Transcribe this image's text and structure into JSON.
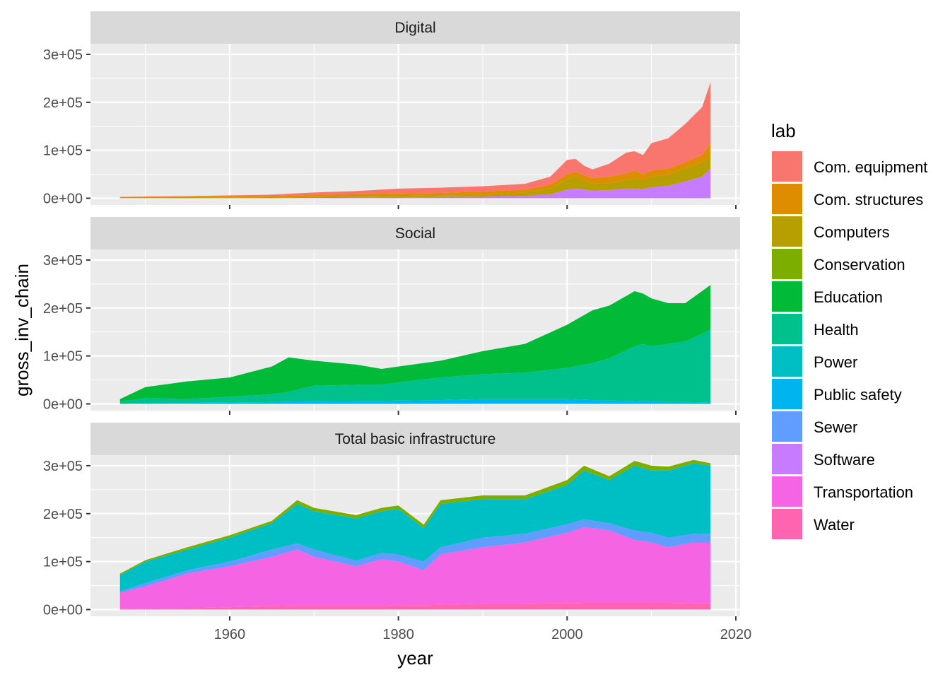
{
  "chart_data": {
    "type": "area",
    "stacked": true,
    "facets": [
      "Digital",
      "Social",
      "Total basic infrastructure"
    ],
    "xlabel": "year",
    "ylabel": "gross_inv_chain",
    "xlim": [
      1943.5,
      2020.5
    ],
    "ylim": [
      -14000,
      322000
    ],
    "x_ticks": [
      1960,
      1980,
      2000,
      2020
    ],
    "y_ticks": [
      0,
      100000,
      200000,
      300000
    ],
    "y_tick_labels": [
      "0e+00",
      "1e+05",
      "2e+05",
      "3e+05"
    ],
    "legend_title": "lab",
    "legend_position": "right",
    "legend": [
      {
        "label": "Com. equipment",
        "color": "#F8766D"
      },
      {
        "label": "Com. structures",
        "color": "#DE8C00"
      },
      {
        "label": "Computers",
        "color": "#B79F00"
      },
      {
        "label": "Conservation",
        "color": "#7CAE00"
      },
      {
        "label": "Education",
        "color": "#00BA38"
      },
      {
        "label": "Health",
        "color": "#00C08B"
      },
      {
        "label": "Power",
        "color": "#00BFC4"
      },
      {
        "label": "Public safety",
        "color": "#00B4F0"
      },
      {
        "label": "Sewer",
        "color": "#619CFF"
      },
      {
        "label": "Software",
        "color": "#C77CFF"
      },
      {
        "label": "Transportation",
        "color": "#F564E3"
      },
      {
        "label": "Water",
        "color": "#FF64B0"
      }
    ],
    "panels": [
      {
        "facet": "Digital",
        "series_order_bottom_to_top": [
          "Software",
          "Computers",
          "Com. structures",
          "Com. equipment"
        ],
        "cumulative_tops": {
          "x": [
            1947,
            1955,
            1965,
            1970,
            1975,
            1980,
            1985,
            1990,
            1995,
            1998,
            2000,
            2001,
            2002,
            2003,
            2005,
            2007,
            2008,
            2009,
            2010,
            2012,
            2014,
            2016,
            2017
          ],
          "Software": [
            0,
            0,
            0,
            500,
            1000,
            1500,
            2500,
            3000,
            5000,
            8000,
            18000,
            20000,
            18000,
            16000,
            17000,
            20000,
            20000,
            19000,
            23000,
            26000,
            35000,
            45000,
            62000
          ],
          "Computers": [
            500,
            700,
            1500,
            2500,
            3500,
            5000,
            6000,
            7000,
            12000,
            20000,
            40000,
            45000,
            38000,
            30000,
            32000,
            38000,
            42000,
            38000,
            45000,
            50000,
            62000,
            75000,
            90000
          ],
          "Com. structures": [
            2500,
            3500,
            5000,
            7000,
            9000,
            10000,
            11000,
            14000,
            18000,
            28000,
            50000,
            55000,
            48000,
            42000,
            45000,
            52000,
            58000,
            50000,
            58000,
            62000,
            75000,
            90000,
            115000
          ],
          "Com. equipment": [
            3000,
            4500,
            7500,
            12000,
            15000,
            20000,
            22000,
            25000,
            30000,
            45000,
            80000,
            82000,
            68000,
            60000,
            72000,
            95000,
            98000,
            90000,
            115000,
            125000,
            155000,
            190000,
            242000
          ]
        }
      },
      {
        "facet": "Social",
        "series_order_bottom_to_top": [
          "Public safety",
          "Health",
          "Education"
        ],
        "cumulative_tops": {
          "x": [
            1947,
            1950,
            1955,
            1960,
            1965,
            1967,
            1970,
            1975,
            1978,
            1980,
            1985,
            1990,
            1995,
            2000,
            2003,
            2005,
            2008,
            2009,
            2010,
            2012,
            2014,
            2017
          ],
          "Public safety": [
            500,
            1500,
            2000,
            3000,
            4000,
            5000,
            5500,
            6000,
            6500,
            7000,
            8000,
            10000,
            10000,
            10000,
            8000,
            7000,
            6000,
            5000,
            5000,
            4000,
            4000,
            3000
          ],
          "Health": [
            5000,
            12000,
            10000,
            15000,
            20000,
            25000,
            38000,
            40000,
            40000,
            45000,
            55000,
            62000,
            65000,
            75000,
            85000,
            95000,
            120000,
            125000,
            120000,
            125000,
            130000,
            155000
          ],
          "Education": [
            10000,
            35000,
            47000,
            55000,
            78000,
            97000,
            90000,
            82000,
            73000,
            78000,
            90000,
            110000,
            125000,
            165000,
            195000,
            205000,
            235000,
            230000,
            220000,
            210000,
            210000,
            248000
          ]
        }
      },
      {
        "facet": "Total basic infrastructure",
        "series_order_bottom_to_top": [
          "Water",
          "Transportation",
          "Sewer",
          "Power",
          "Conservation"
        ],
        "cumulative_tops": {
          "x": [
            1947,
            1950,
            1955,
            1960,
            1965,
            1968,
            1970,
            1975,
            1978,
            1980,
            1983,
            1985,
            1990,
            1995,
            2000,
            2002,
            2005,
            2008,
            2010,
            2012,
            2015,
            2017
          ],
          "Water": [
            1000,
            2000,
            3000,
            5000,
            7000,
            8000,
            8000,
            8000,
            8000,
            9000,
            9000,
            10000,
            12000,
            12000,
            13000,
            14000,
            14000,
            14000,
            14000,
            14000,
            13000,
            13000
          ],
          "Transportation": [
            35000,
            48000,
            75000,
            90000,
            110000,
            125000,
            110000,
            90000,
            105000,
            100000,
            82000,
            115000,
            130000,
            140000,
            160000,
            172000,
            165000,
            145000,
            140000,
            130000,
            140000,
            140000
          ],
          "Sewer": [
            38000,
            55000,
            82000,
            100000,
            125000,
            138000,
            125000,
            102000,
            118000,
            115000,
            100000,
            130000,
            150000,
            158000,
            178000,
            188000,
            180000,
            165000,
            160000,
            150000,
            158000,
            158000
          ],
          "Power": [
            72000,
            100000,
            125000,
            150000,
            180000,
            220000,
            205000,
            190000,
            205000,
            210000,
            170000,
            220000,
            230000,
            230000,
            260000,
            290000,
            270000,
            300000,
            290000,
            290000,
            305000,
            300000
          ],
          "Conservation": [
            75000,
            103000,
            130000,
            155000,
            185000,
            228000,
            212000,
            197000,
            212000,
            217000,
            177000,
            228000,
            238000,
            238000,
            270000,
            300000,
            278000,
            310000,
            300000,
            298000,
            312000,
            305000
          ]
        }
      }
    ]
  }
}
